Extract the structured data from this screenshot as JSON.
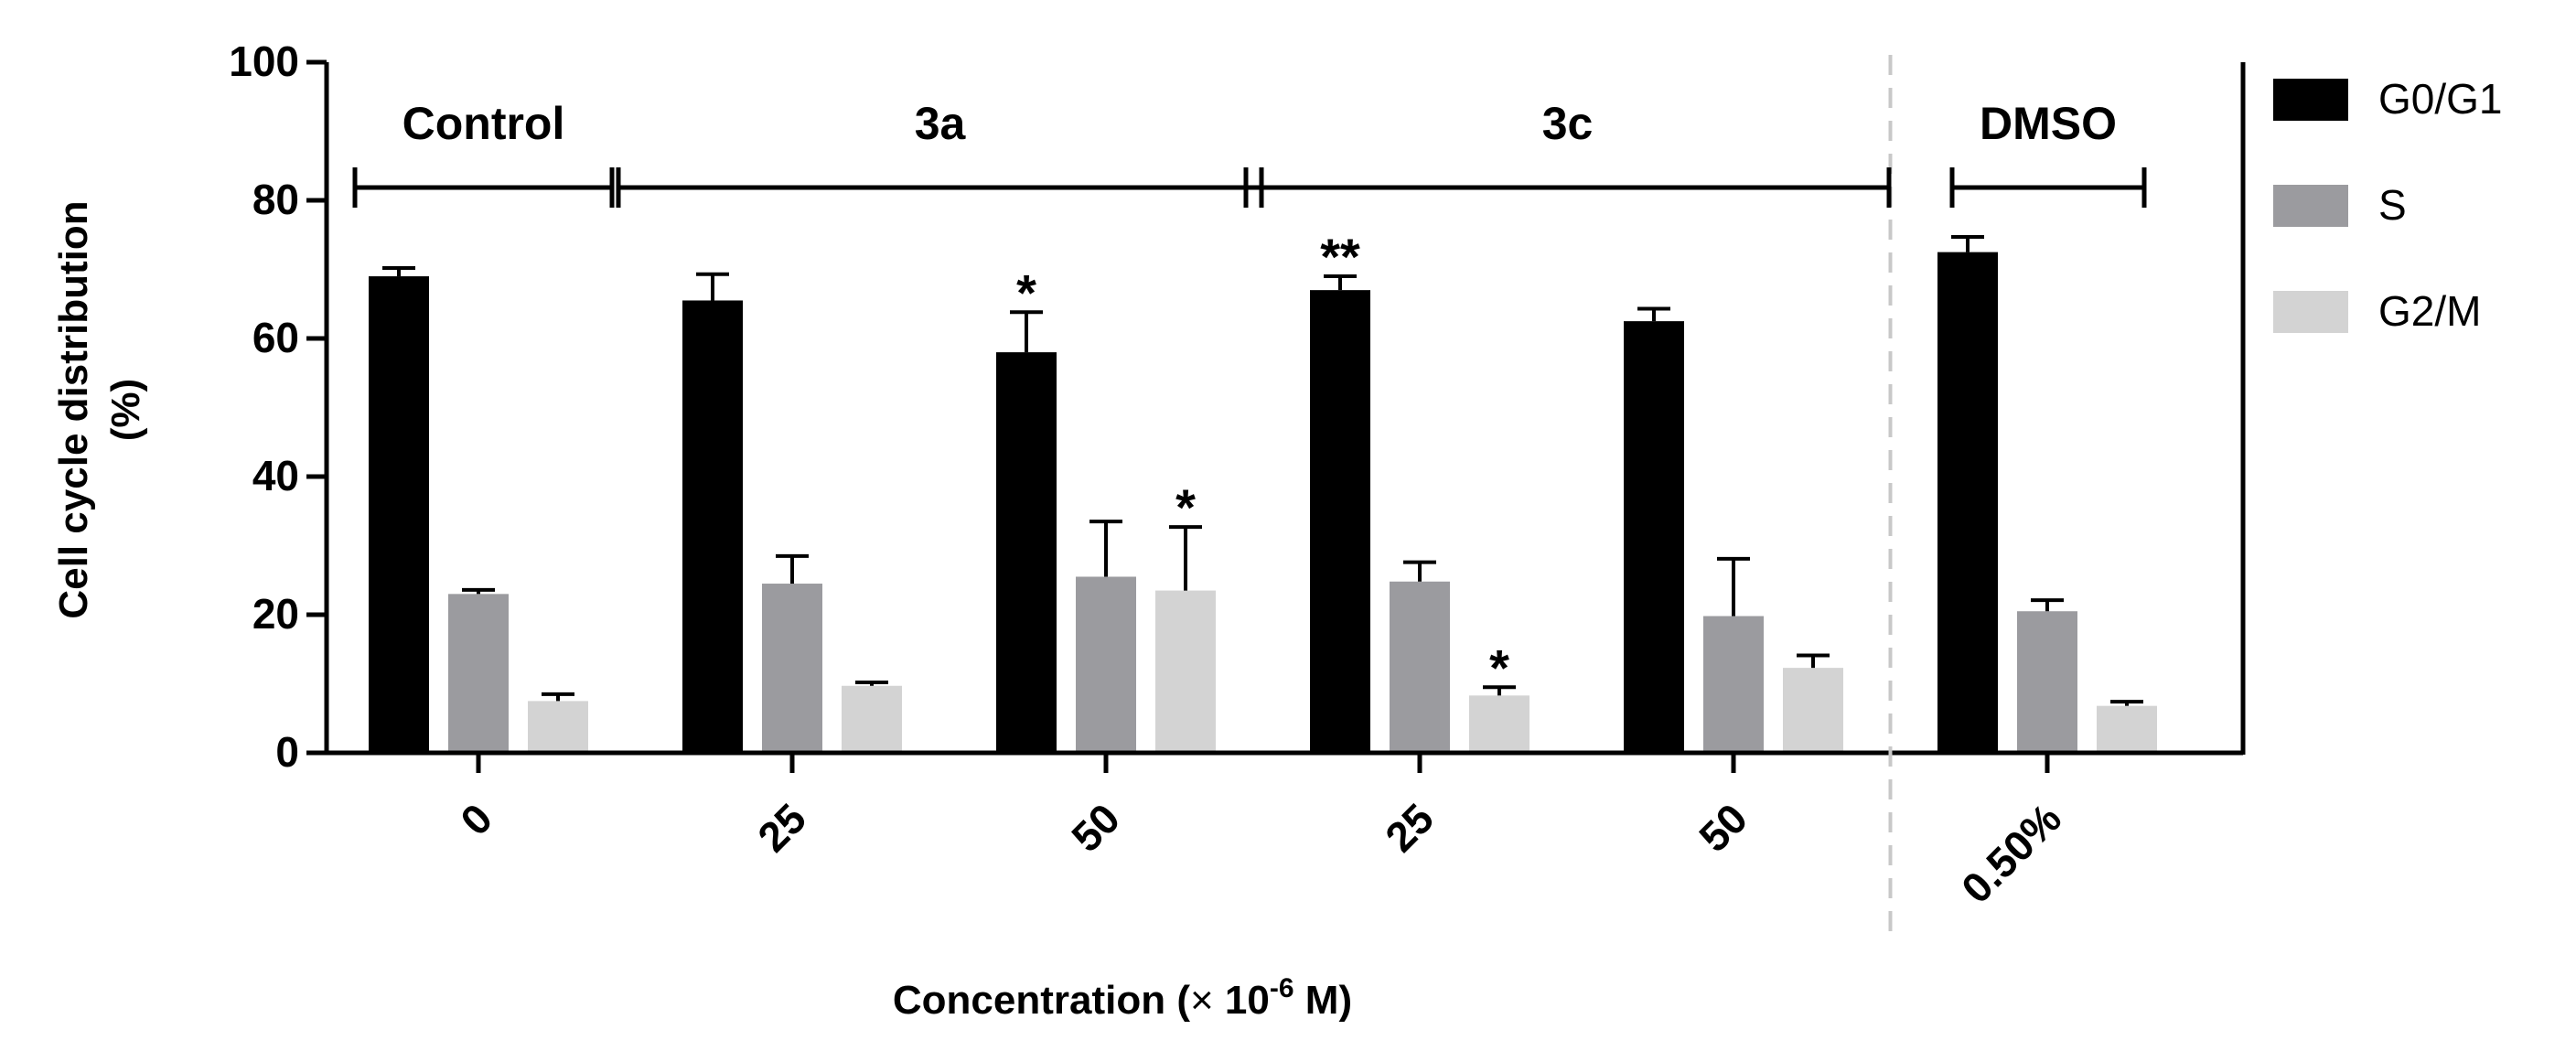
{
  "chart_data": {
    "type": "bar",
    "title": "",
    "xlabel_main": "Concentration (",
    "xlabel_times": "×",
    "xlabel_ten": " 10",
    "xlabel_exp": "-6",
    "xlabel_unit": " M)",
    "ylabel_line1": "Cell cycle distribution",
    "ylabel_line2": "(%)",
    "ylim": [
      0,
      100
    ],
    "yticks": [
      "0",
      "20",
      "40",
      "60",
      "80",
      "100"
    ],
    "categories": [
      "0",
      "25",
      "50",
      "25",
      "50",
      "0.50%"
    ],
    "groups": [
      {
        "label": "Control",
        "span": [
          0,
          0
        ]
      },
      {
        "label": "3a",
        "span": [
          1,
          2
        ]
      },
      {
        "label": "3c",
        "span": [
          3,
          4
        ]
      },
      {
        "label": "DMSO",
        "span": [
          5,
          5
        ]
      }
    ],
    "separator_after_category": 4,
    "series": [
      {
        "name": "G0/G1",
        "color": "#000000",
        "values": [
          69,
          65.5,
          58,
          67,
          62.5,
          72.5
        ],
        "errors": [
          1.2,
          3.8,
          5.8,
          2.0,
          1.8,
          2.2
        ]
      },
      {
        "name": "S",
        "color": "#9b9b9f",
        "values": [
          23,
          24.5,
          25.5,
          24.8,
          19.8,
          20.5
        ],
        "errors": [
          0.6,
          4.0,
          8.0,
          2.8,
          8.3,
          1.6
        ]
      },
      {
        "name": "G2/M",
        "color": "#d3d3d3",
        "values": [
          7.5,
          9.7,
          23.5,
          8.3,
          12.3,
          6.8
        ],
        "errors": [
          1.0,
          0.5,
          9.2,
          1.2,
          1.8,
          0.6
        ]
      }
    ],
    "annotations": [
      {
        "text": "*",
        "category": 2,
        "series": 0
      },
      {
        "text": "*",
        "category": 2,
        "series": 2
      },
      {
        "text": "**",
        "category": 3,
        "series": 0
      },
      {
        "text": "*",
        "category": 3,
        "series": 2
      }
    ],
    "legend_position": "right"
  }
}
